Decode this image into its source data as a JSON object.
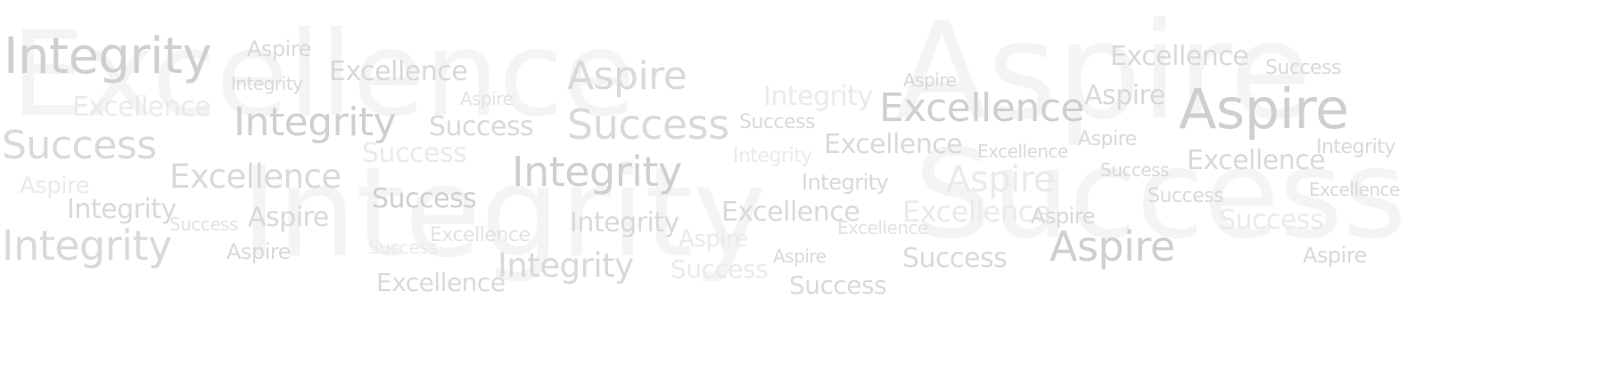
{
  "word_cloud": {
    "background_words": [
      "Excellence",
      "Aspire",
      "Integrity",
      "Success"
    ],
    "words": [
      "Integrity",
      "Aspire",
      "Excellence",
      "Aspire",
      "Excellence",
      "Success",
      "Aspire",
      "Integrity",
      "Excellence",
      "Aspire",
      "Excellence",
      "Aspire",
      "Success",
      "Aspire",
      "Integrity",
      "Success",
      "Integrity",
      "Success",
      "Success",
      "Aspire",
      "Excellence",
      "Excellence",
      "Integrity",
      "Success",
      "Integrity",
      "Excellence",
      "Integrity",
      "Excellence",
      "Aspire",
      "Integrity",
      "Aspire",
      "Success",
      "Excellence",
      "Success",
      "Success",
      "Integrity",
      "Success",
      "Aspire",
      "Integrity",
      "Excellence",
      "Excellence",
      "Aspire",
      "Success",
      "Excellence",
      "Integrity",
      "Excellence",
      "Aspire",
      "Aspire",
      "Success",
      "Aspire",
      "Integrity",
      "Aspire",
      "Success",
      "Aspire",
      "Success",
      "Excellence",
      "Success"
    ],
    "colors": {
      "dark": "#cfcfcf",
      "mid": "#d9d9d9",
      "light": "#e2e2e2",
      "faint": "#eaeaea",
      "background": "#f4f4f4"
    }
  }
}
